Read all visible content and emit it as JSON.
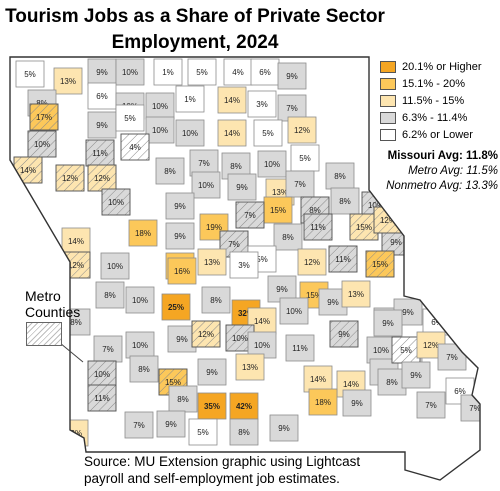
{
  "title": {
    "line1": "Tourism Jobs as a Share of Private Sector",
    "line2": "Employment, 2024"
  },
  "legend": {
    "items": [
      {
        "label": "20.1% or Higher",
        "color": "#f5a623"
      },
      {
        "label": "15.1% - 20%",
        "color": "#fcc85a"
      },
      {
        "label": "11.5% - 15%",
        "color": "#fde5b0"
      },
      {
        "label": "6.3% - 11.4%",
        "color": "#d9d9d9"
      },
      {
        "label": "6.2% or Lower",
        "color": "#ffffff"
      }
    ],
    "missouri_avg": "Missouri Avg: 11.8%",
    "metro_avg": "Metro Avg: 11.5%",
    "nonmetro_avg": "Nonmetro Avg: 13.3%"
  },
  "metro_label": {
    "line1": "Metro",
    "line2": "Counties"
  },
  "source": {
    "line1": "Source: MU Extension graphic using Lightcast",
    "line2": "payroll and self-employment job estimates."
  },
  "counties": [
    {
      "label": "5%",
      "tier": 4,
      "metro": false
    },
    {
      "label": "13%",
      "tier": 2,
      "metro": false
    },
    {
      "label": "9%",
      "tier": 3,
      "metro": false
    },
    {
      "label": "10%",
      "tier": 3,
      "metro": false
    },
    {
      "label": "1%",
      "tier": 4,
      "metro": false
    },
    {
      "label": "5%",
      "tier": 4,
      "metro": false
    },
    {
      "label": "4%",
      "tier": 4,
      "metro": false
    },
    {
      "label": "6%",
      "tier": 4,
      "metro": false
    },
    {
      "label": "9%",
      "tier": 3,
      "metro": false
    },
    {
      "label": "8%",
      "tier": 3,
      "metro": false
    },
    {
      "label": "6%",
      "tier": 4,
      "metro": false
    },
    {
      "label": "10%",
      "tier": 3,
      "metro": false
    },
    {
      "label": "10%",
      "tier": 3,
      "metro": false
    },
    {
      "label": "1%",
      "tier": 4,
      "metro": false
    },
    {
      "label": "14%",
      "tier": 2,
      "metro": false
    },
    {
      "label": "3%",
      "tier": 4,
      "metro": false
    },
    {
      "label": "7%",
      "tier": 3,
      "metro": false
    },
    {
      "label": "17%",
      "tier": 1,
      "metro": true
    },
    {
      "label": "9%",
      "tier": 3,
      "metro": false
    },
    {
      "label": "5%",
      "tier": 4,
      "metro": false
    },
    {
      "label": "10%",
      "tier": 3,
      "metro": false
    },
    {
      "label": "10%",
      "tier": 3,
      "metro": false
    },
    {
      "label": "14%",
      "tier": 2,
      "metro": false
    },
    {
      "label": "5%",
      "tier": 4,
      "metro": false
    },
    {
      "label": "12%",
      "tier": 2,
      "metro": false
    },
    {
      "label": "10%",
      "tier": 3,
      "metro": true
    },
    {
      "label": "11%",
      "tier": 3,
      "metro": true
    },
    {
      "label": "4%",
      "tier": 4,
      "metro": true
    },
    {
      "label": "7%",
      "tier": 3,
      "metro": false
    },
    {
      "label": "8%",
      "tier": 3,
      "metro": false
    },
    {
      "label": "10%",
      "tier": 3,
      "metro": false
    },
    {
      "label": "5%",
      "tier": 4,
      "metro": false
    },
    {
      "label": "14%",
      "tier": 2,
      "metro": true
    },
    {
      "label": "12%",
      "tier": 2,
      "metro": true
    },
    {
      "label": "12%",
      "tier": 2,
      "metro": true
    },
    {
      "label": "8%",
      "tier": 3,
      "metro": false
    },
    {
      "label": "10%",
      "tier": 3,
      "metro": false
    },
    {
      "label": "9%",
      "tier": 3,
      "metro": false
    },
    {
      "label": "13%",
      "tier": 2,
      "metro": false
    },
    {
      "label": "10%",
      "tier": 3,
      "metro": true
    },
    {
      "label": "8%",
      "tier": 3,
      "metro": false
    },
    {
      "label": "7%",
      "tier": 3,
      "metro": false
    },
    {
      "label": "15%",
      "tier": 1,
      "metro": false
    },
    {
      "label": "8%",
      "tier": 3,
      "metro": true
    },
    {
      "label": "8%",
      "tier": 3,
      "metro": false
    },
    {
      "label": "10%",
      "tier": 3,
      "metro": true
    },
    {
      "label": "9%",
      "tier": 3,
      "metro": false
    },
    {
      "label": "14%",
      "tier": 2,
      "metro": false
    },
    {
      "label": "18%",
      "tier": 1,
      "metro": false
    },
    {
      "label": "9%",
      "tier": 3,
      "metro": false
    },
    {
      "label": "19%",
      "tier": 1,
      "metro": false
    },
    {
      "label": "7%",
      "tier": 3,
      "metro": true
    },
    {
      "label": "8%",
      "tier": 3,
      "metro": false
    },
    {
      "label": "11%",
      "tier": 3,
      "metro": true
    },
    {
      "label": "15%",
      "tier": 2,
      "metro": true
    },
    {
      "label": "9%",
      "tier": 3,
      "metro": true
    },
    {
      "label": "12%",
      "tier": 2,
      "metro": true
    },
    {
      "label": "12%",
      "tier": 2,
      "metro": true
    },
    {
      "label": "10%",
      "tier": 3,
      "metro": false
    },
    {
      "label": "16%",
      "tier": 1,
      "metro": false
    },
    {
      "label": "7%",
      "tier": 3,
      "metro": true
    },
    {
      "label": "5%",
      "tier": 4,
      "metro": false
    },
    {
      "label": "12%",
      "tier": 2,
      "metro": false
    },
    {
      "label": "11%",
      "tier": 3,
      "metro": true
    },
    {
      "label": "15%",
      "tier": 1,
      "metro": true
    },
    {
      "label": "8%",
      "tier": 3,
      "metro": false
    },
    {
      "label": "16%",
      "tier": 1,
      "metro": false
    },
    {
      "label": "13%",
      "tier": 2,
      "metro": false
    },
    {
      "label": "3%",
      "tier": 4,
      "metro": false
    },
    {
      "label": "9%",
      "tier": 3,
      "metro": false
    },
    {
      "label": "15%",
      "tier": 1,
      "metro": false
    },
    {
      "label": "25%",
      "tier": 0,
      "metro": false
    },
    {
      "label": "8%",
      "tier": 3,
      "metro": false
    },
    {
      "label": "32%",
      "tier": 0,
      "metro": false
    },
    {
      "label": "14%",
      "tier": 2,
      "metro": false
    },
    {
      "label": "10%",
      "tier": 3,
      "metro": false
    },
    {
      "label": "9%",
      "tier": 3,
      "metro": false
    },
    {
      "label": "13%",
      "tier": 2,
      "metro": false
    },
    {
      "label": "11%",
      "tier": 3,
      "metro": false
    },
    {
      "label": "9%",
      "tier": 3,
      "metro": false
    },
    {
      "label": "8%",
      "tier": 3,
      "metro": false
    },
    {
      "label": "10%",
      "tier": 3,
      "metro": false
    },
    {
      "label": "9%",
      "tier": 3,
      "metro": false
    },
    {
      "label": "12%",
      "tier": 2,
      "metro": true
    },
    {
      "label": "9%",
      "tier": 3,
      "metro": false
    },
    {
      "label": "7%",
      "tier": 3,
      "metro": false
    },
    {
      "label": "10%",
      "tier": 3,
      "metro": false
    },
    {
      "label": "10%",
      "tier": 3,
      "metro": true
    },
    {
      "label": "10%",
      "tier": 3,
      "metro": false
    },
    {
      "label": "11%",
      "tier": 3,
      "metro": false
    },
    {
      "label": "9%",
      "tier": 3,
      "metro": true
    },
    {
      "label": "10%",
      "tier": 3,
      "metro": false
    },
    {
      "label": "7%",
      "tier": 3,
      "metro": false
    },
    {
      "label": "6%",
      "tier": 4,
      "metro": false
    },
    {
      "label": "9%",
      "tier": 3,
      "metro": false
    },
    {
      "label": "5%",
      "tier": 4,
      "metro": true
    },
    {
      "label": "12%",
      "tier": 2,
      "metro": false
    },
    {
      "label": "7%",
      "tier": 3,
      "metro": false
    },
    {
      "label": "10%",
      "tier": 3,
      "metro": true
    },
    {
      "label": "11%",
      "tier": 3,
      "metro": true
    },
    {
      "label": "8%",
      "tier": 3,
      "metro": false
    },
    {
      "label": "15%",
      "tier": 1,
      "metro": true
    },
    {
      "label": "9%",
      "tier": 3,
      "metro": false
    },
    {
      "label": "13%",
      "tier": 2,
      "metro": false
    },
    {
      "label": "14%",
      "tier": 2,
      "metro": false
    },
    {
      "label": "14%",
      "tier": 2,
      "metro": false
    },
    {
      "label": "8%",
      "tier": 3,
      "metro": false
    },
    {
      "label": "9%",
      "tier": 3,
      "metro": false
    },
    {
      "label": "6%",
      "tier": 4,
      "metro": false
    },
    {
      "label": "8%",
      "tier": 3,
      "metro": false
    },
    {
      "label": "35%",
      "tier": 0,
      "metro": false
    },
    {
      "label": "42%",
      "tier": 0,
      "metro": false
    },
    {
      "label": "18%",
      "tier": 1,
      "metro": false
    },
    {
      "label": "9%",
      "tier": 3,
      "metro": false
    },
    {
      "label": "7%",
      "tier": 3,
      "metro": false
    },
    {
      "label": "7%",
      "tier": 3,
      "metro": false
    },
    {
      "label": "12%",
      "tier": 2,
      "metro": false
    },
    {
      "label": "7%",
      "tier": 3,
      "metro": false
    },
    {
      "label": "9%",
      "tier": 3,
      "metro": false
    },
    {
      "label": "5%",
      "tier": 4,
      "metro": false
    },
    {
      "label": "8%",
      "tier": 3,
      "metro": false
    },
    {
      "label": "9%",
      "tier": 3,
      "metro": false
    }
  ]
}
